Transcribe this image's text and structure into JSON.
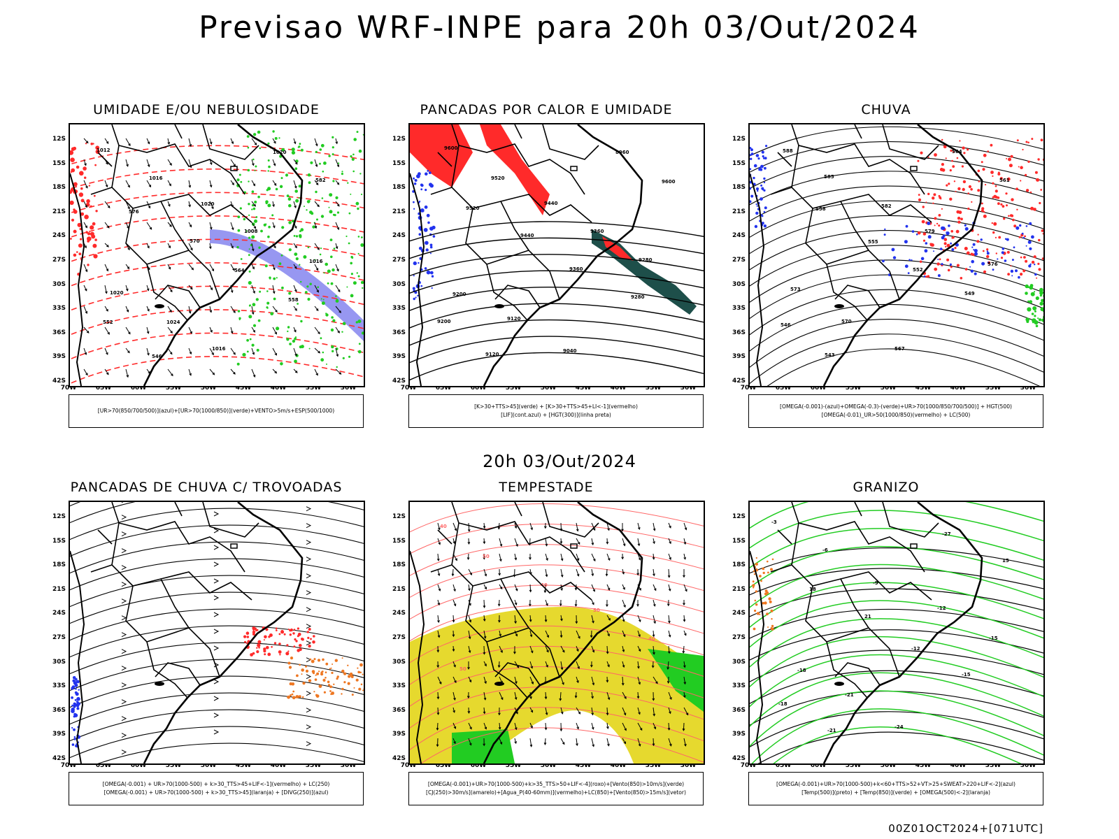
{
  "title": "Previsao WRF-INPE  para 20h 03/Out/2024",
  "mid_title": "20h 03/Out/2024",
  "footer": "00Z01OCT2024+[071UTC]",
  "lat_labels": [
    "12S",
    "15S",
    "18S",
    "21S",
    "24S",
    "27S",
    "30S",
    "33S",
    "36S",
    "39S",
    "42S"
  ],
  "lon_labels": [
    "70W",
    "65W",
    "60W",
    "55W",
    "50W",
    "45W",
    "40W",
    "35W",
    "30W"
  ],
  "colors": {
    "blue": "#2233ee",
    "lavender": "#8c8cf0",
    "green": "#22cc22",
    "red": "#ff2a2a",
    "light_red": "#ff6666",
    "orange": "#ee7722",
    "yellow": "#e6d92e",
    "dark_teal": "#1e4f4a",
    "black": "#000000"
  },
  "panels": [
    {
      "id": "umidade",
      "title": "UMIDADE E/OU NEBULOSIDADE",
      "legend": [
        "[UR>70(850/700/500)](azul)+[UR>70(1000/850)](verde)+VENTO>5m/s+ESP(500/1000)"
      ],
      "contour_labels": [
        "1012",
        "1016",
        "1020",
        "1008",
        "1016",
        "1020",
        "1024",
        "1016",
        "1020",
        "582",
        "576",
        "570",
        "564",
        "558",
        "552",
        "546"
      ]
    },
    {
      "id": "pancadas-calor",
      "title": "PANCADAS POR CALOR E UMIDADE",
      "legend": [
        "[K>30+TTS>45](verde) + [K>30+TTS>45+LI<-1](vermelho)",
        "[LIF](cont.azul) + [HGT(300)](linha preta)"
      ],
      "contour_labels": [
        "9600",
        "9520",
        "9440",
        "9360",
        "9280",
        "9200",
        "9120",
        "9040",
        "8960",
        "9600",
        "9520",
        "9440",
        "9360",
        "9280",
        "9200",
        "9120"
      ]
    },
    {
      "id": "chuva",
      "title": "CHUVA",
      "legend": [
        "[OMEGA(-0.001)-(azul)+OMEGA(-0.3)-(verde)+UR>70(1000/850/700/500)] + HGT(500)",
        "[OMEGA(-0.01)_UR>50(1000/850)(vermelho) + LC(500)"
      ],
      "contour_labels": [
        "588",
        "585",
        "582",
        "579",
        "576",
        "573",
        "570",
        "567",
        "564",
        "561",
        "558",
        "555",
        "552",
        "549",
        "546",
        "543"
      ]
    },
    {
      "id": "pancadas-trovoadas",
      "title": "PANCADAS DE CHUVA C/ TROVOADAS",
      "legend": [
        "[OMEGA(-0.001) + UR>70(1000-500) + k>30_TTS>45+LIF<-1](vermelho) + LC(250)",
        "[OMEGA(-0.001) + UR>70(1000-500) + k>30_TTS>45](laranja) + [DIVG(250)](azul)"
      ],
      "contour_labels": []
    },
    {
      "id": "tempestade",
      "title": "TEMPESTADE",
      "legend": [
        "[OMEGA(-0.001)+UR>70(1000-500)+k>35_TTS>50+LIF<-4](roxo)+[Vento(850)>10m/s](verde)",
        "[CJ(250)>30m/s](amarelo)+[Agua_P(40-60mm)](vermelho)+LC(850)+[Vento(850)>15m/s](vetor)"
      ],
      "contour_labels": [
        "40",
        "50",
        "40",
        "50",
        "40",
        "50"
      ]
    },
    {
      "id": "granizo",
      "title": "GRANIZO",
      "legend": [
        "[OMEGA(-0.001)+UR>70(1000-500)+k<60+TTS>52+VT>25+SWEAT>220+LIF<-2](azul)",
        "[Temp(500)](preto) + [Temp(850)](verde) + [OMEGA(500)<-2](laranja)"
      ],
      "contour_labels": [
        "-3",
        "-6",
        "-9",
        "-12",
        "-15",
        "-18",
        "-21",
        "-24",
        "-27",
        "15",
        "18",
        "21",
        "-12",
        "-15",
        "-18",
        "-21"
      ]
    }
  ]
}
